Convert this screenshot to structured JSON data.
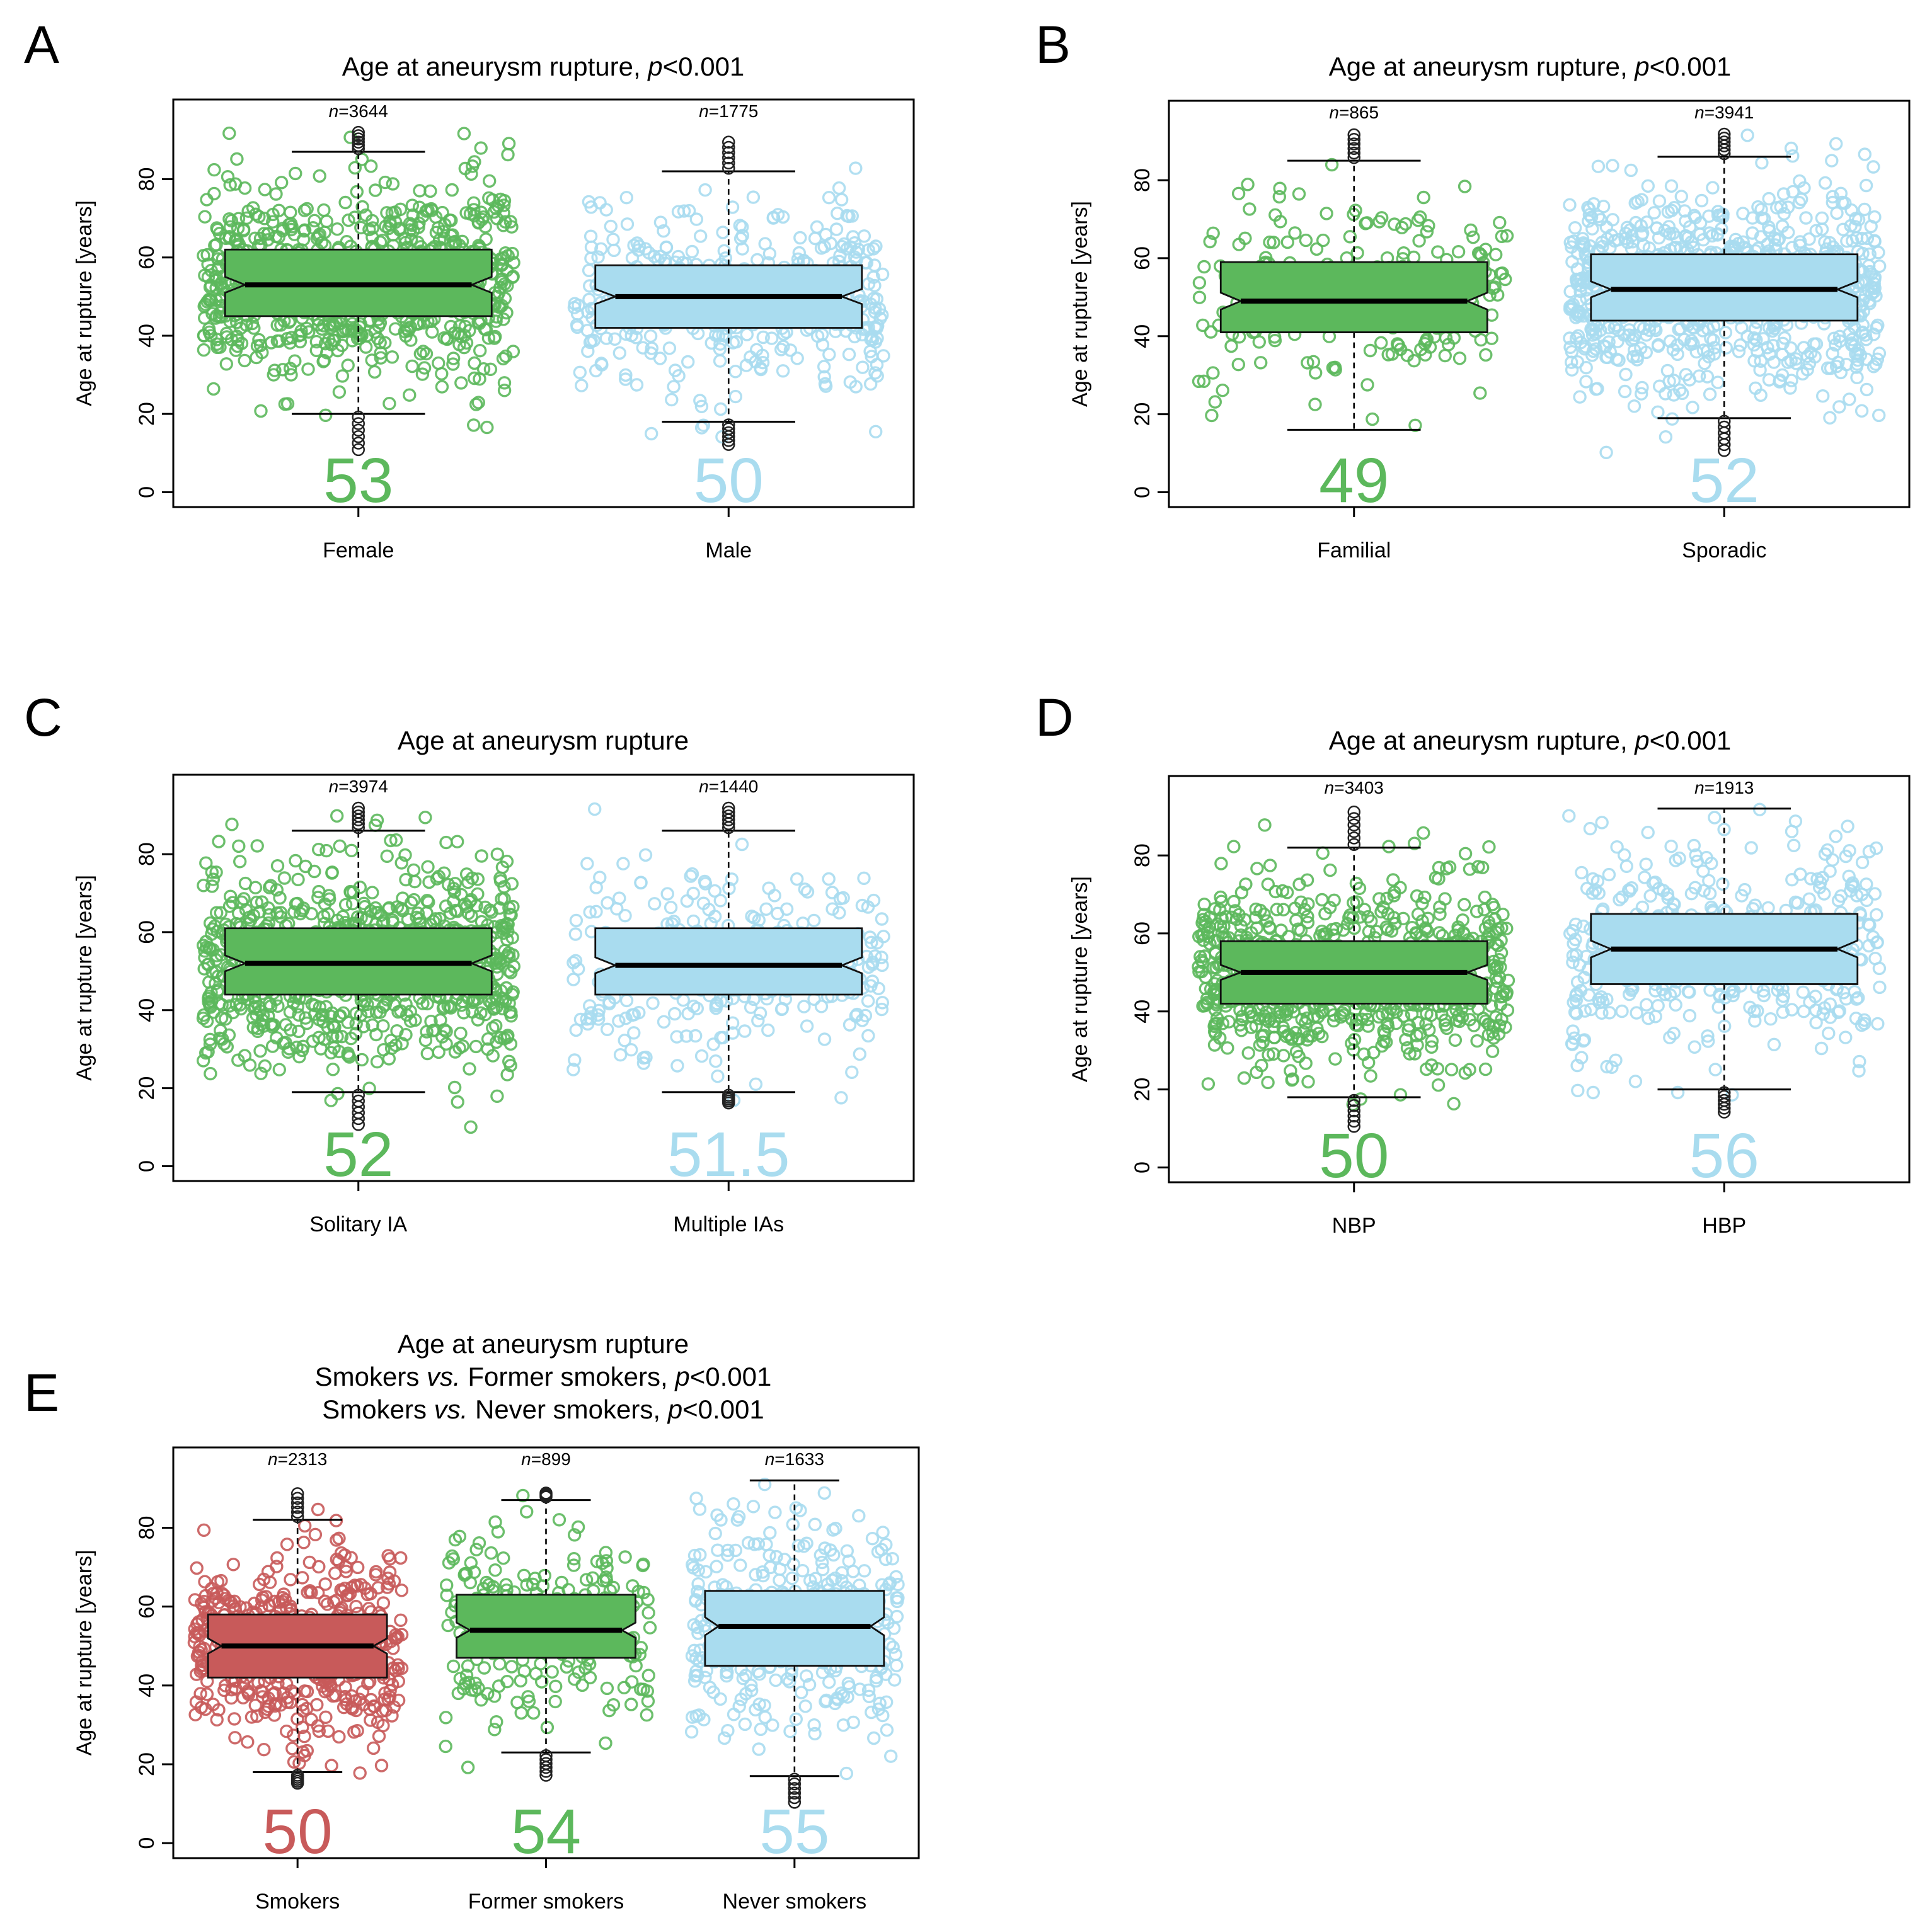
{
  "colors": {
    "green": "#5cb85c",
    "green_dark": "#3a8a3a",
    "blue": "#a9dcef",
    "blue_dark": "#6aaecb",
    "red": "#c85a5a",
    "red_dark": "#8f3232"
  },
  "chart_data": [
    {
      "type": "box",
      "panel_label": "A",
      "title_lines": [
        {
          "text": "Age at aneurysm rupture, ",
          "italic": "p",
          "suffix": "<0.001"
        }
      ],
      "ylabel": "Age at rupture [years]",
      "ylim": [
        0,
        95
      ],
      "yticks": [
        0,
        20,
        40,
        60,
        80
      ],
      "categories": [
        "Female",
        "Male"
      ],
      "n_labels": [
        "3644",
        "1775"
      ],
      "medians": [
        53,
        50
      ],
      "median_labels": [
        "53",
        "50"
      ],
      "q1": [
        45,
        42
      ],
      "q3": [
        62,
        58
      ],
      "whisker_low": [
        20,
        18
      ],
      "whisker_high": [
        87,
        82
      ],
      "point_range": [
        [
          10,
          92
        ],
        [
          12,
          90
        ]
      ],
      "colors": [
        "green",
        "blue"
      ]
    },
    {
      "type": "box",
      "panel_label": "B",
      "title_lines": [
        {
          "text": "Age at aneurysm rupture, ",
          "italic": "p",
          "suffix": "<0.001"
        }
      ],
      "ylabel": "Age at rupture [years]",
      "ylim": [
        0,
        95
      ],
      "yticks": [
        0,
        20,
        40,
        60,
        80
      ],
      "categories": [
        "Familial",
        "Sporadic"
      ],
      "n_labels": [
        "865",
        "3941"
      ],
      "medians": [
        49,
        52
      ],
      "median_labels": [
        "49",
        "52"
      ],
      "q1": [
        41,
        44
      ],
      "q3": [
        59,
        61
      ],
      "whisker_low": [
        16,
        19
      ],
      "whisker_high": [
        85,
        86
      ],
      "point_range": [
        [
          16,
          92
        ],
        [
          10,
          92
        ]
      ],
      "colors": [
        "green",
        "blue"
      ]
    },
    {
      "type": "box",
      "panel_label": "C",
      "title_lines": [
        {
          "text": "Age at aneurysm rupture",
          "italic": "",
          "suffix": ""
        }
      ],
      "ylabel": "Age at rupture [years]",
      "ylim": [
        0,
        95
      ],
      "yticks": [
        0,
        20,
        40,
        60,
        80
      ],
      "categories": [
        "Solitary IA",
        "Multiple IAs"
      ],
      "n_labels": [
        "3974",
        "1440"
      ],
      "medians": [
        52,
        51.5
      ],
      "median_labels": [
        "52",
        "51.5"
      ],
      "q1": [
        44,
        44
      ],
      "q3": [
        61,
        61
      ],
      "whisker_low": [
        19,
        19
      ],
      "whisker_high": [
        86,
        86
      ],
      "point_range": [
        [
          10,
          92
        ],
        [
          16,
          92
        ]
      ],
      "colors": [
        "green",
        "blue"
      ]
    },
    {
      "type": "box",
      "panel_label": "D",
      "title_lines": [
        {
          "text": "Age at aneurysm rupture, ",
          "italic": "p",
          "suffix": "<0.001"
        }
      ],
      "ylabel": "Age at rupture [years]",
      "ylim": [
        0,
        95
      ],
      "yticks": [
        0,
        20,
        40,
        60,
        80
      ],
      "categories": [
        "NBP",
        "HBP"
      ],
      "n_labels": [
        "3403",
        "1913"
      ],
      "medians": [
        50,
        56
      ],
      "median_labels": [
        "50",
        "56"
      ],
      "q1": [
        42,
        47
      ],
      "q3": [
        58,
        65
      ],
      "whisker_low": [
        18,
        20
      ],
      "whisker_high": [
        82,
        92
      ],
      "point_range": [
        [
          10,
          92
        ],
        [
          14,
          92
        ]
      ],
      "colors": [
        "green",
        "blue"
      ]
    },
    {
      "type": "box",
      "panel_label": "E",
      "title_lines": [
        {
          "text": "Age at aneurysm rupture",
          "italic": "",
          "suffix": ""
        },
        {
          "text": "Smokers ",
          "italic": "vs.",
          "suffix": " Former smokers, ",
          "italic2": "p",
          "suffix2": "<0.001"
        },
        {
          "text": "Smokers ",
          "italic": "vs.",
          "suffix": " Never smokers, ",
          "italic2": "p",
          "suffix2": "<0.001"
        }
      ],
      "ylabel": "Age at rupture [years]",
      "ylim": [
        0,
        95
      ],
      "yticks": [
        0,
        20,
        40,
        60,
        80
      ],
      "categories": [
        "Smokers",
        "Former smokers",
        "Never smokers"
      ],
      "n_labels": [
        "2313",
        "899",
        "1633"
      ],
      "medians": [
        50,
        54,
        55
      ],
      "median_labels": [
        "50",
        "54",
        "55"
      ],
      "q1": [
        42,
        47,
        45
      ],
      "q3": [
        58,
        63,
        64
      ],
      "whisker_low": [
        18,
        23,
        17
      ],
      "whisker_high": [
        82,
        87,
        92
      ],
      "point_range": [
        [
          15,
          89
        ],
        [
          17,
          89
        ],
        [
          10,
          92
        ]
      ],
      "colors": [
        "red",
        "green",
        "blue"
      ]
    }
  ]
}
